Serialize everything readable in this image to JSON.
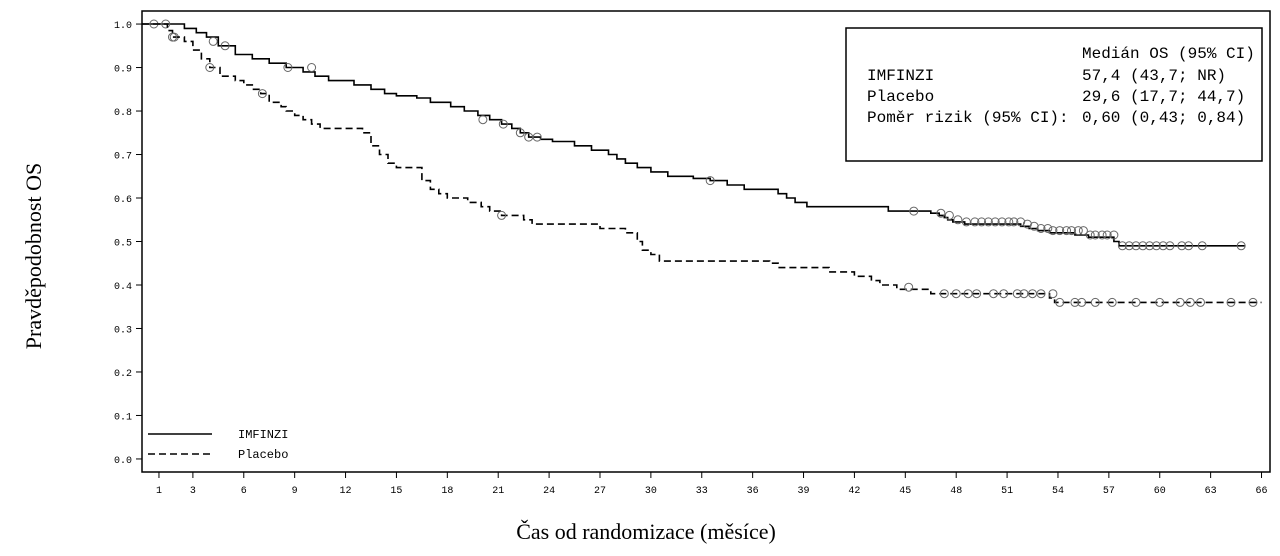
{
  "chart_data": {
    "type": "line",
    "title": "",
    "xlabel": "Čas od randomizace (měsíce)",
    "ylabel": "Pravděpodobnost OS",
    "xlim": [
      0,
      66.5
    ],
    "ylim": [
      -0.03,
      1.03
    ],
    "x_ticks": [
      1,
      3,
      6,
      9,
      12,
      15,
      18,
      21,
      24,
      27,
      30,
      33,
      36,
      39,
      42,
      45,
      48,
      51,
      54,
      57,
      60,
      63,
      66
    ],
    "y_ticks": [
      0.0,
      0.1,
      0.2,
      0.3,
      0.4,
      0.5,
      0.6,
      0.7,
      0.8,
      0.9,
      1.0
    ],
    "y_tick_labels": [
      "0.0",
      "0.1",
      "0.2",
      "0.3",
      "0.4",
      "0.5",
      "0.6",
      "0.7",
      "0.8",
      "0.9",
      "1.0"
    ],
    "grid": false,
    "legend": {
      "position": "bottom-left",
      "entries": [
        {
          "label": "IMFINZI",
          "line_style": "solid"
        },
        {
          "label": "Placebo",
          "line_style": "dashed"
        }
      ]
    },
    "stats_box": {
      "position": "top-right",
      "header": "Medián OS (95% CI)",
      "rows": [
        {
          "label": "IMFINZI",
          "value": "57,4 (43,7; NR)"
        },
        {
          "label": "Placebo",
          "value": "29,6 (17,7; 44,7)"
        },
        {
          "label": "Poměr rizik (95% CI):",
          "value": "0,60 (0,43; 0,84)"
        }
      ]
    },
    "series": [
      {
        "name": "IMFINZI",
        "line_style": "solid",
        "color": "#000000",
        "steps": [
          [
            0,
            1.0
          ],
          [
            1.5,
            1.0
          ],
          [
            2.5,
            0.99
          ],
          [
            3.2,
            0.98
          ],
          [
            3.8,
            0.97
          ],
          [
            4.5,
            0.95
          ],
          [
            5.5,
            0.93
          ],
          [
            6.5,
            0.92
          ],
          [
            7.5,
            0.91
          ],
          [
            8.5,
            0.9
          ],
          [
            9.5,
            0.89
          ],
          [
            10.2,
            0.88
          ],
          [
            11.0,
            0.87
          ],
          [
            12.5,
            0.86
          ],
          [
            13.5,
            0.85
          ],
          [
            14.3,
            0.84
          ],
          [
            15.0,
            0.835
          ],
          [
            16.2,
            0.83
          ],
          [
            17.0,
            0.82
          ],
          [
            18.2,
            0.81
          ],
          [
            19.0,
            0.8
          ],
          [
            19.8,
            0.79
          ],
          [
            20.5,
            0.78
          ],
          [
            21.2,
            0.77
          ],
          [
            21.8,
            0.76
          ],
          [
            22.3,
            0.75
          ],
          [
            22.8,
            0.74
          ],
          [
            23.5,
            0.735
          ],
          [
            24.2,
            0.73
          ],
          [
            25.5,
            0.72
          ],
          [
            26.5,
            0.71
          ],
          [
            27.5,
            0.7
          ],
          [
            28.0,
            0.69
          ],
          [
            28.5,
            0.68
          ],
          [
            29.2,
            0.67
          ],
          [
            30.0,
            0.66
          ],
          [
            31.0,
            0.65
          ],
          [
            32.5,
            0.645
          ],
          [
            33.5,
            0.64
          ],
          [
            34.5,
            0.63
          ],
          [
            35.5,
            0.62
          ],
          [
            37.5,
            0.61
          ],
          [
            38.0,
            0.6
          ],
          [
            38.5,
            0.59
          ],
          [
            39.2,
            0.58
          ],
          [
            44.0,
            0.57
          ],
          [
            46.5,
            0.565
          ],
          [
            47.0,
            0.56
          ],
          [
            47.3,
            0.555
          ],
          [
            47.5,
            0.55
          ],
          [
            47.8,
            0.545
          ],
          [
            48.5,
            0.54
          ],
          [
            51.8,
            0.535
          ],
          [
            52.3,
            0.53
          ],
          [
            52.8,
            0.525
          ],
          [
            53.5,
            0.52
          ],
          [
            54.5,
            0.52
          ],
          [
            55.0,
            0.515
          ],
          [
            55.8,
            0.51
          ],
          [
            57.3,
            0.5
          ],
          [
            57.6,
            0.49
          ],
          [
            65.0,
            0.49
          ]
        ],
        "censored": [
          [
            0.7,
            1.0
          ],
          [
            1.4,
            1.0
          ],
          [
            1.9,
            0.97
          ],
          [
            4.2,
            0.96
          ],
          [
            4.9,
            0.95
          ],
          [
            8.6,
            0.9
          ],
          [
            10.0,
            0.9
          ],
          [
            20.1,
            0.78
          ],
          [
            21.3,
            0.77
          ],
          [
            22.3,
            0.75
          ],
          [
            22.8,
            0.74
          ],
          [
            23.3,
            0.74
          ],
          [
            33.5,
            0.64
          ],
          [
            45.5,
            0.57
          ],
          [
            47.1,
            0.565
          ],
          [
            47.6,
            0.56
          ],
          [
            48.1,
            0.55
          ],
          [
            48.6,
            0.545
          ],
          [
            49.1,
            0.545
          ],
          [
            49.5,
            0.545
          ],
          [
            49.9,
            0.545
          ],
          [
            50.3,
            0.545
          ],
          [
            50.7,
            0.545
          ],
          [
            51.1,
            0.545
          ],
          [
            51.4,
            0.545
          ],
          [
            51.8,
            0.545
          ],
          [
            52.2,
            0.54
          ],
          [
            52.6,
            0.535
          ],
          [
            53.0,
            0.53
          ],
          [
            53.4,
            0.53
          ],
          [
            53.7,
            0.525
          ],
          [
            54.1,
            0.525
          ],
          [
            54.5,
            0.525
          ],
          [
            54.8,
            0.525
          ],
          [
            55.2,
            0.525
          ],
          [
            55.5,
            0.525
          ],
          [
            55.9,
            0.515
          ],
          [
            56.2,
            0.515
          ],
          [
            56.6,
            0.515
          ],
          [
            56.9,
            0.515
          ],
          [
            57.3,
            0.515
          ],
          [
            57.8,
            0.49
          ],
          [
            58.2,
            0.49
          ],
          [
            58.6,
            0.49
          ],
          [
            59.0,
            0.49
          ],
          [
            59.4,
            0.49
          ],
          [
            59.8,
            0.49
          ],
          [
            60.2,
            0.49
          ],
          [
            60.6,
            0.49
          ],
          [
            61.3,
            0.49
          ],
          [
            61.7,
            0.49
          ],
          [
            62.5,
            0.49
          ],
          [
            64.8,
            0.49
          ]
        ]
      },
      {
        "name": "Placebo",
        "line_style": "dashed",
        "color": "#000000",
        "steps": [
          [
            0,
            1.0
          ],
          [
            1.5,
            0.985
          ],
          [
            1.8,
            0.97
          ],
          [
            2.5,
            0.96
          ],
          [
            3.0,
            0.94
          ],
          [
            3.5,
            0.92
          ],
          [
            4.0,
            0.9
          ],
          [
            4.6,
            0.88
          ],
          [
            5.5,
            0.87
          ],
          [
            6.0,
            0.86
          ],
          [
            6.5,
            0.85
          ],
          [
            7.0,
            0.84
          ],
          [
            7.5,
            0.82
          ],
          [
            8.2,
            0.81
          ],
          [
            8.5,
            0.8
          ],
          [
            9.0,
            0.79
          ],
          [
            9.5,
            0.78
          ],
          [
            10.0,
            0.77
          ],
          [
            10.5,
            0.76
          ],
          [
            13.0,
            0.75
          ],
          [
            13.5,
            0.72
          ],
          [
            14.0,
            0.7
          ],
          [
            14.5,
            0.68
          ],
          [
            15.0,
            0.67
          ],
          [
            16.5,
            0.64
          ],
          [
            17.0,
            0.62
          ],
          [
            17.5,
            0.61
          ],
          [
            18.0,
            0.6
          ],
          [
            19.2,
            0.59
          ],
          [
            20.0,
            0.58
          ],
          [
            20.5,
            0.57
          ],
          [
            21.2,
            0.56
          ],
          [
            22.5,
            0.55
          ],
          [
            23.0,
            0.54
          ],
          [
            27.0,
            0.53
          ],
          [
            28.5,
            0.52
          ],
          [
            29.2,
            0.5
          ],
          [
            29.5,
            0.48
          ],
          [
            30.0,
            0.47
          ],
          [
            30.5,
            0.455
          ],
          [
            37.0,
            0.45
          ],
          [
            37.5,
            0.44
          ],
          [
            40.5,
            0.43
          ],
          [
            42.0,
            0.42
          ],
          [
            43.0,
            0.41
          ],
          [
            43.5,
            0.4
          ],
          [
            44.5,
            0.39
          ],
          [
            46.5,
            0.38
          ],
          [
            53.5,
            0.37
          ],
          [
            53.8,
            0.36
          ],
          [
            66.0,
            0.36
          ]
        ],
        "censored": [
          [
            1.8,
            0.97
          ],
          [
            4.0,
            0.9
          ],
          [
            7.1,
            0.84
          ],
          [
            21.2,
            0.56
          ],
          [
            45.2,
            0.395
          ],
          [
            47.3,
            0.38
          ],
          [
            48.0,
            0.38
          ],
          [
            48.7,
            0.38
          ],
          [
            49.2,
            0.38
          ],
          [
            50.2,
            0.38
          ],
          [
            50.8,
            0.38
          ],
          [
            51.6,
            0.38
          ],
          [
            52.0,
            0.38
          ],
          [
            52.5,
            0.38
          ],
          [
            53.0,
            0.38
          ],
          [
            53.7,
            0.38
          ],
          [
            54.1,
            0.36
          ],
          [
            55.0,
            0.36
          ],
          [
            55.4,
            0.36
          ],
          [
            56.2,
            0.36
          ],
          [
            57.2,
            0.36
          ],
          [
            58.6,
            0.36
          ],
          [
            60.0,
            0.36
          ],
          [
            61.2,
            0.36
          ],
          [
            61.8,
            0.36
          ],
          [
            62.4,
            0.36
          ],
          [
            64.2,
            0.36
          ],
          [
            65.5,
            0.36
          ]
        ]
      }
    ]
  }
}
